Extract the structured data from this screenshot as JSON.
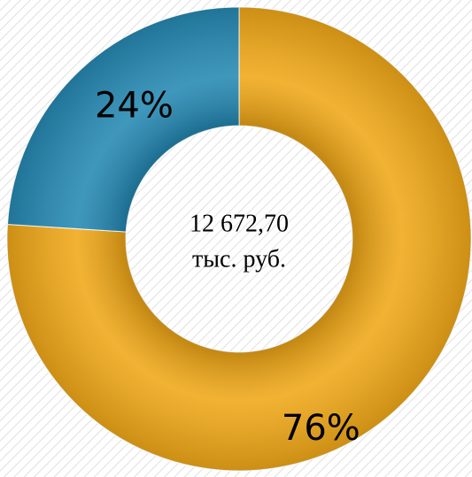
{
  "chart_data": {
    "type": "donut",
    "categories": [
      null,
      null
    ],
    "values": [
      76,
      24
    ],
    "value_labels": [
      "76%",
      "24%"
    ],
    "colors": [
      "#f0a818",
      "#2589b3"
    ],
    "center_text": [
      "12 672,70",
      "тыс. руб."
    ]
  }
}
